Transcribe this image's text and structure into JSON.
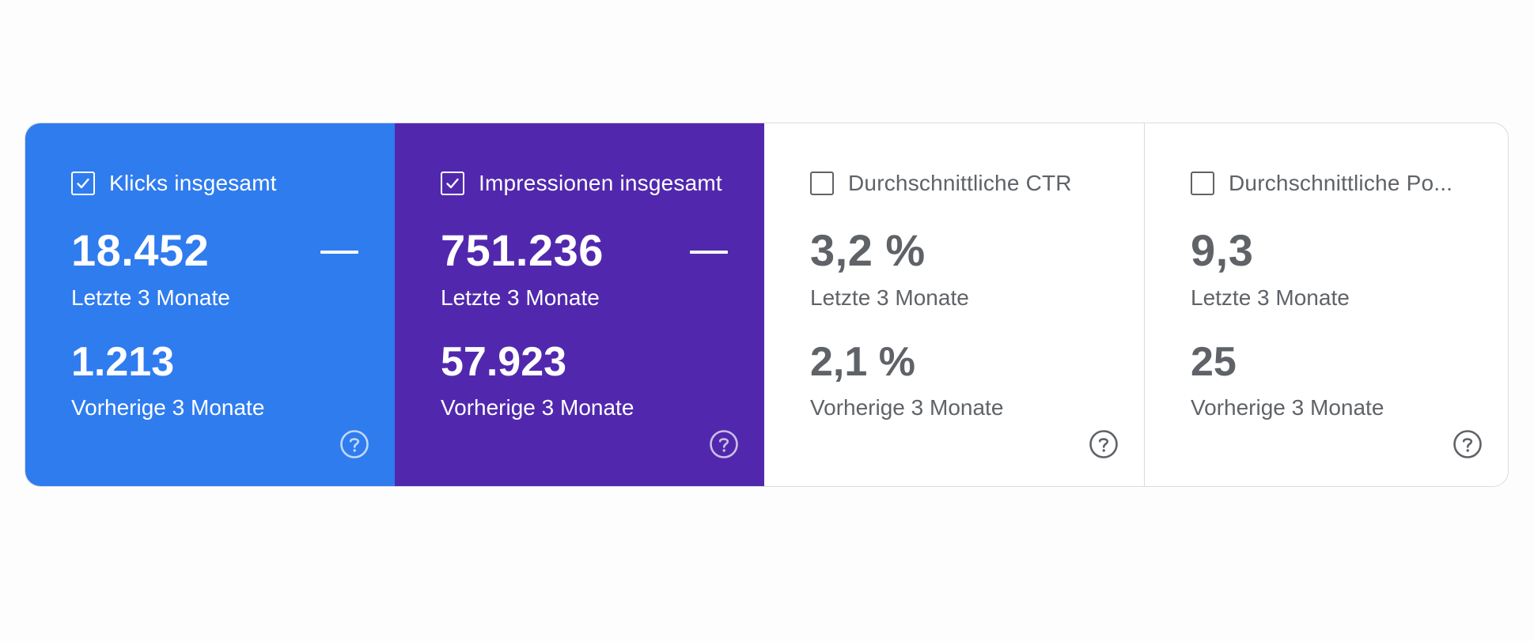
{
  "metrics": [
    {
      "label": "Klicks insgesamt",
      "checked": true,
      "value": "18.452",
      "period": "Letzte 3 Monate",
      "previous_value": "1.213",
      "previous_period": "Vorherige 3 Monate",
      "background": "#2f7cef",
      "icon": "help-icon"
    },
    {
      "label": "Impressionen insgesamt",
      "checked": true,
      "value": "751.236",
      "period": "Letzte 3 Monate",
      "previous_value": "57.923",
      "previous_period": "Vorherige 3 Monate",
      "background": "#5128ad",
      "icon": "help-icon"
    },
    {
      "label": "Durchschnittliche CTR",
      "checked": false,
      "value": "3,2 %",
      "period": "Letzte 3 Monate",
      "previous_value": "2,1 %",
      "previous_period": "Vorherige 3 Monate",
      "background": "#ffffff",
      "icon": "help-icon"
    },
    {
      "label": "Durchschnittliche Po...",
      "checked": false,
      "value": "9,3",
      "period": "Letzte 3 Monate",
      "previous_value": "25",
      "previous_period": "Vorherige 3 Monate",
      "background": "#ffffff",
      "icon": "help-icon"
    }
  ],
  "colors": {
    "text_muted": "#5f6368",
    "border": "#dadce0"
  }
}
